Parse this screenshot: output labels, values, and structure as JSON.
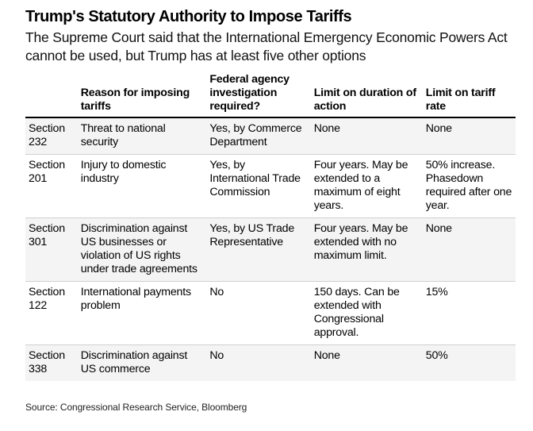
{
  "header": {
    "title": "Trump's Statutory Authority to Impose Tariffs",
    "subtitle": "The Supreme Court said that the International Emergency Economic Powers Act cannot be used, but Trump has at least five other options"
  },
  "table": {
    "columns": [
      "",
      "Reason for imposing tariffs",
      "Federal agency investigation required?",
      "Limit on duration of action",
      "Limit on tariff rate"
    ],
    "rows": [
      {
        "section": "Section 232",
        "reason": "Threat to national security",
        "investigation": "Yes, by Commerce Department",
        "duration": "None",
        "rate": "None"
      },
      {
        "section": "Section 201",
        "reason": "Injury to domestic industry",
        "investigation": "Yes, by International Trade Commission",
        "duration": "Four years. May be extended to a maximum of eight years.",
        "rate": "50% increase. Phasedown required after one year."
      },
      {
        "section": "Section 301",
        "reason": "Discrimination against US businesses or violation of US rights under trade agreements",
        "investigation": "Yes, by US Trade Representative",
        "duration": "Four years. May be extended with no maximum limit.",
        "rate": "None"
      },
      {
        "section": "Section 122",
        "reason": "International payments problem",
        "investigation": "No",
        "duration": "150 days. Can be extended with Congressional approval.",
        "rate": "15%"
      },
      {
        "section": "Section 338",
        "reason": "Discrimination against US commerce",
        "investigation": "No",
        "duration": "None",
        "rate": "50%"
      }
    ]
  },
  "footer": {
    "source": "Source: Congressional Research Service, Bloomberg"
  },
  "colors": {
    "shaded_row": "#f4f4f4",
    "row_divider": "#cfcfcf",
    "header_rule": "#000000"
  }
}
